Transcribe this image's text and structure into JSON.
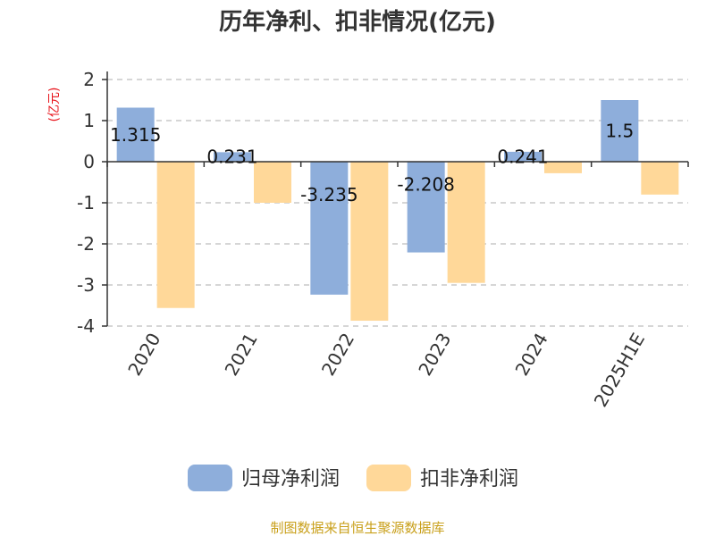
{
  "chart_data": {
    "type": "bar",
    "title": "历年净利、扣非情况(亿元)",
    "ylabel": "(亿元)",
    "xlabel": "",
    "ylim": [
      -4,
      2
    ],
    "yticks": [
      2,
      1,
      0,
      -1,
      -2,
      -3,
      -4
    ],
    "grid": true,
    "legend_position": "bottom",
    "categories": [
      "2020",
      "2021",
      "2022",
      "2023",
      "2024",
      "2025H1E"
    ],
    "series": [
      {
        "name": "归母净利润",
        "color": "#8eaedb",
        "values": [
          1.315,
          0.231,
          -3.235,
          -2.208,
          0.241,
          1.5
        ],
        "labels": [
          "1.315",
          "0.231",
          "-3.235",
          "-2.208",
          "0.241",
          "1.5"
        ]
      },
      {
        "name": "扣非净利润",
        "color": "#ffd899",
        "values": [
          -3.56,
          -1.0,
          -3.87,
          -2.95,
          -0.28,
          -0.8
        ]
      }
    ]
  },
  "source": "制图数据来自恒生聚源数据库"
}
